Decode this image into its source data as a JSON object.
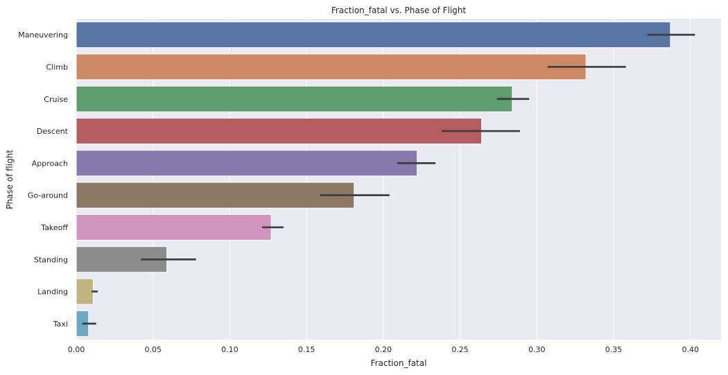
{
  "chart_data": {
    "type": "bar",
    "orientation": "horizontal",
    "title": "Fraction_fatal vs. Phase of Flight",
    "xlabel": "Fraction_fatal",
    "ylabel": "Phase of flight",
    "xlim": [
      0,
      0.42
    ],
    "xticks": [
      "0.00",
      "0.05",
      "0.10",
      "0.15",
      "0.20",
      "0.25",
      "0.30",
      "0.35",
      "0.40"
    ],
    "grid": true,
    "categories": [
      "Maneuvering",
      "Climb",
      "Cruise",
      "Descent",
      "Approach",
      "Go-around",
      "Takeoff",
      "Standing",
      "Landing",
      "Taxi"
    ],
    "values": [
      0.387,
      0.332,
      0.284,
      0.264,
      0.222,
      0.181,
      0.127,
      0.059,
      0.011,
      0.008
    ],
    "ci_low": [
      0.372,
      0.307,
      0.274,
      0.238,
      0.209,
      0.159,
      0.121,
      0.042,
      0.01,
      0.004
    ],
    "ci_high": [
      0.403,
      0.358,
      0.295,
      0.289,
      0.234,
      0.204,
      0.135,
      0.078,
      0.014,
      0.013
    ],
    "colors": [
      "#5875a4",
      "#cc8963",
      "#5f9e6e",
      "#b55d60",
      "#857aab",
      "#8d7866",
      "#d095bf",
      "#8c8c8c",
      "#c1b37f",
      "#6ba8c1"
    ],
    "background": "#eaeaf2",
    "errorbar_color": "#3d3d3d"
  }
}
